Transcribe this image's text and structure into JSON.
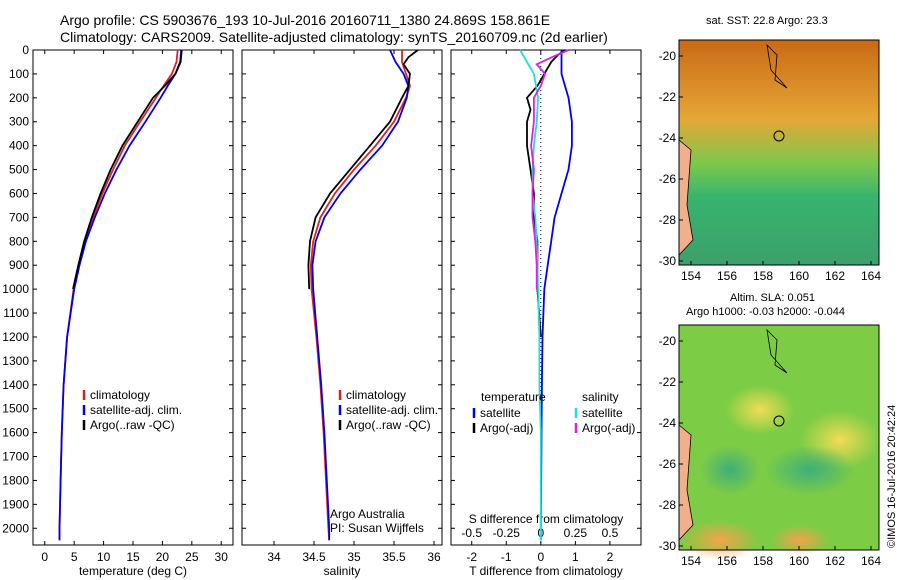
{
  "header": {
    "line1": "Argo profile: CS 5903676_193 10-Jul-2016 20160711_1380 24.869S 158.861E",
    "line2": "Climatology: CARS2009. Satellite-adjusted climatology: synTS_20160709.nc (2d earlier)"
  },
  "colors": {
    "climatology": "#dd2222",
    "satellite": "#0000ee",
    "argo": "#000000",
    "sat_salinity": "#22dddd",
    "argo_salinity": "#dd22dd"
  },
  "maps": {
    "sst_title": "sat. SST: 22.8  Argo: 23.3",
    "sla_title1": "Altim. SLA: 0.051",
    "sla_title2": "Argo h1000: -0.03 h2000: -0.044",
    "x_ticks": [
      "154",
      "156",
      "158",
      "160",
      "162",
      "164"
    ],
    "y_ticks": [
      "-20",
      "-22",
      "-24",
      "-26",
      "-28",
      "-30"
    ]
  },
  "credits": {
    "line1": "Argo Australia",
    "line2": "PI: Susan Wijffels",
    "stamp": "©IMOS 16-Jul-2016 20:42:24"
  },
  "chart_data": [
    {
      "type": "line",
      "xlabel": "temperature (deg C)",
      "xlim": [
        -2,
        32
      ],
      "ylim": [
        2070,
        0
      ],
      "x_ticks": [
        0,
        5,
        10,
        15,
        20,
        25,
        30
      ],
      "y_ticks": [
        0,
        100,
        200,
        300,
        400,
        500,
        600,
        700,
        800,
        900,
        1000,
        1100,
        1200,
        1300,
        1400,
        1500,
        1600,
        1700,
        1800,
        1900,
        2000
      ],
      "legend": [
        "climatology",
        "satellite-adj. clim.",
        "Argo(..raw -QC)"
      ],
      "legend_position": "lower-middle",
      "series": [
        {
          "name": "climatology",
          "depth": [
            0,
            50,
            100,
            150,
            200,
            300,
            400,
            500,
            600,
            700,
            800,
            900,
            1000,
            1200,
            1400,
            1600,
            1800,
            2000,
            2050
          ],
          "values": [
            22.6,
            22.4,
            21.6,
            20.2,
            18.9,
            16.2,
            13.6,
            11.6,
            9.8,
            8.2,
            6.8,
            5.8,
            4.9,
            3.8,
            3.2,
            2.9,
            2.7,
            2.5,
            2.5
          ]
        },
        {
          "name": "satellite-adj. clim.",
          "depth": [
            0,
            50,
            100,
            150,
            200,
            300,
            400,
            500,
            600,
            700,
            800,
            900,
            1000,
            1200,
            1400,
            1600,
            1800,
            2000,
            2050
          ],
          "values": [
            23.2,
            23.0,
            22.2,
            20.9,
            19.7,
            17.1,
            14.4,
            12.2,
            10.2,
            8.5,
            7.0,
            5.9,
            5.0,
            3.8,
            3.2,
            2.9,
            2.7,
            2.5,
            2.5
          ]
        },
        {
          "name": "Argo(..raw -QC)",
          "depth": [
            0,
            50,
            100,
            150,
            200,
            300,
            400,
            500,
            600,
            700,
            800,
            900,
            1000
          ],
          "values": [
            23.3,
            23.1,
            22.2,
            20.4,
            18.4,
            15.8,
            13.2,
            11.2,
            9.5,
            8.0,
            6.7,
            5.7,
            4.8
          ]
        }
      ]
    },
    {
      "type": "line",
      "xlabel": "salinity",
      "xlim": [
        33.6,
        36.1
      ],
      "ylim": [
        2070,
        0
      ],
      "x_ticks": [
        34,
        34.5,
        35,
        35.5,
        36
      ],
      "legend": [
        "climatology",
        "satellite-adj. clim.",
        "Argo(..raw -QC)"
      ],
      "legend_position": "lower-right",
      "series": [
        {
          "name": "climatology",
          "depth": [
            0,
            50,
            100,
            150,
            200,
            300,
            400,
            500,
            600,
            700,
            800,
            900,
            1000,
            1200,
            1400,
            1600,
            1800,
            2000,
            2050
          ],
          "values": [
            35.6,
            35.6,
            35.65,
            35.7,
            35.65,
            35.5,
            35.27,
            35.0,
            34.76,
            34.58,
            34.49,
            34.46,
            34.47,
            34.53,
            34.58,
            34.62,
            34.65,
            34.68,
            34.69
          ]
        },
        {
          "name": "satellite-adj. clim.",
          "depth": [
            0,
            50,
            100,
            150,
            200,
            300,
            400,
            500,
            600,
            700,
            800,
            900,
            1000,
            1200,
            1400,
            1600,
            1800,
            2000,
            2050
          ],
          "values": [
            35.45,
            35.52,
            35.62,
            35.68,
            35.66,
            35.55,
            35.35,
            35.08,
            34.83,
            34.63,
            34.52,
            34.48,
            34.49,
            34.54,
            34.59,
            34.63,
            34.66,
            34.69,
            34.69
          ]
        },
        {
          "name": "Argo(..raw -QC)",
          "depth": [
            0,
            30,
            60,
            100,
            150,
            200,
            300,
            400,
            500,
            600,
            700,
            800,
            900,
            1000
          ],
          "values": [
            35.8,
            35.68,
            35.62,
            35.7,
            35.68,
            35.6,
            35.45,
            35.2,
            34.95,
            34.7,
            34.52,
            34.45,
            34.43,
            34.44
          ]
        }
      ]
    },
    {
      "type": "line",
      "xlabel": "T difference from climatology",
      "xlabel_top": "S difference from climatology",
      "xlim": [
        -2.6,
        2.9
      ],
      "ylim": [
        2070,
        0
      ],
      "x_ticks": [
        -2,
        -1,
        0,
        1,
        2
      ],
      "x_ticks_s": [
        -0.5,
        -0.25,
        0,
        0.25,
        0.5
      ],
      "legend_temperature": [
        "temperature",
        "satellite",
        "Argo(-adj)"
      ],
      "legend_salinity": [
        "salinity",
        "satellite",
        "Argo(-adj)"
      ],
      "legend_position": "lower",
      "series": [
        {
          "name": "satellite",
          "variable": "temperature",
          "depth": [
            0,
            50,
            100,
            150,
            200,
            300,
            400,
            500,
            600,
            700,
            800,
            900,
            1000,
            1200,
            1400,
            1600,
            1800,
            2000,
            2050
          ],
          "values": [
            0.6,
            0.6,
            0.6,
            0.7,
            0.8,
            0.9,
            0.9,
            0.8,
            0.6,
            0.4,
            0.3,
            0.2,
            0.1,
            0.05,
            0.03,
            0.02,
            0.01,
            0.0,
            0.0
          ]
        },
        {
          "name": "Argo(-adj)",
          "variable": "temperature",
          "depth": [
            0,
            20,
            50,
            100,
            150,
            200,
            250,
            300,
            400,
            500,
            600,
            700,
            800,
            900,
            1000,
            1100,
            1200
          ],
          "values": [
            0.7,
            0.5,
            0.3,
            0.1,
            -0.1,
            -0.4,
            -0.3,
            -0.4,
            -0.4,
            -0.3,
            -0.2,
            -0.2,
            -0.1,
            -0.1,
            -0.1,
            -0.05,
            0.0
          ]
        },
        {
          "name": "satellite",
          "variable": "salinity",
          "depth": [
            0,
            50,
            100,
            200,
            300,
            400,
            500,
            600,
            700,
            800,
            1000,
            1200,
            1400,
            1600,
            1800,
            2000,
            2050
          ],
          "values": [
            -0.15,
            -0.1,
            -0.05,
            -0.02,
            -0.03,
            -0.05,
            -0.06,
            -0.06,
            -0.04,
            -0.03,
            -0.02,
            -0.01,
            -0.01,
            0.0,
            0.0,
            0.0,
            0.0
          ]
        },
        {
          "name": "Argo(-adj)",
          "variable": "salinity",
          "depth": [
            0,
            30,
            60,
            100,
            150,
            200,
            300,
            400,
            500,
            600,
            700,
            800,
            900,
            1000
          ],
          "values": [
            0.2,
            0.08,
            -0.03,
            0.03,
            0.0,
            -0.05,
            -0.05,
            -0.07,
            -0.05,
            -0.06,
            -0.06,
            -0.04,
            -0.03,
            -0.03
          ]
        }
      ]
    }
  ]
}
